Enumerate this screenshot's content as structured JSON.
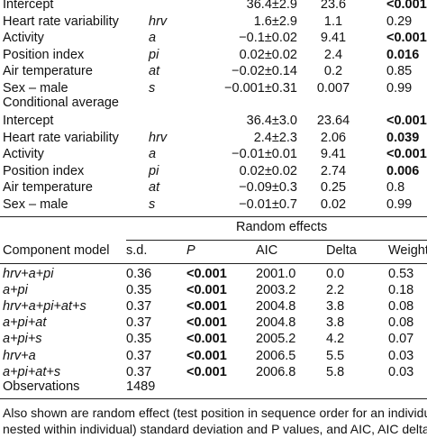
{
  "fixed_rows_a": [
    {
      "label": "Intercept",
      "symbol": "",
      "estimate": "36.4±2.9",
      "stat": "23.6",
      "p": "<0.001",
      "p_bold": true
    },
    {
      "label": "Heart rate variability",
      "symbol": "hrv",
      "estimate": "1.6±2.9",
      "stat": "1.1",
      "p": "0.29",
      "p_bold": false
    },
    {
      "label": "Activity",
      "symbol": "a",
      "estimate": "−0.1±0.02",
      "stat": "9.41",
      "p": "<0.001",
      "p_bold": true
    },
    {
      "label": "Position index",
      "symbol": "pi",
      "estimate": "0.02±0.02",
      "stat": "2.4",
      "p": "0.016",
      "p_bold": true
    },
    {
      "label": "Air temperature",
      "symbol": "at",
      "estimate": "−0.02±0.14",
      "stat": "0.2",
      "p": "0.85",
      "p_bold": false
    },
    {
      "label": "Sex – male",
      "symbol": "s",
      "estimate": "−0.001±0.31",
      "stat": "0.007",
      "p": "0.99",
      "p_bold": false
    }
  ],
  "conditional_title": "Conditional average",
  "fixed_rows_b": [
    {
      "label": "Intercept",
      "symbol": "",
      "estimate": "36.4±3.0",
      "stat": "23.64",
      "p": "<0.001",
      "p_bold": true
    },
    {
      "label": "Heart rate variability",
      "symbol": "hrv",
      "estimate": "2.4±2.3",
      "stat": "2.06",
      "p": "0.039",
      "p_bold": true
    },
    {
      "label": "Activity",
      "symbol": "a",
      "estimate": "−0.01±0.01",
      "stat": "9.41",
      "p": "<0.001",
      "p_bold": true
    },
    {
      "label": "Position index",
      "symbol": "pi",
      "estimate": "0.02±0.02",
      "stat": "2.74",
      "p": "0.006",
      "p_bold": true
    },
    {
      "label": "Air temperature",
      "symbol": "at",
      "estimate": "−0.09±0.3",
      "stat": "0.25",
      "p": "0.8",
      "p_bold": false
    },
    {
      "label": "Sex – male",
      "symbol": "s",
      "estimate": "−0.01±0.7",
      "stat": "0.02",
      "p": "0.99",
      "p_bold": false
    }
  ],
  "random_effects_title": "Random effects",
  "random_headers": {
    "component": "Component model",
    "sd": "s.d.",
    "p": "P",
    "aic": "AIC",
    "delta": "Delta",
    "weight": "Weight"
  },
  "random_rows": [
    {
      "model": "hrv+a+pi",
      "sd": "0.36",
      "p": "<0.001",
      "aic": "2001.0",
      "delta": "0.0",
      "weight": "0.53"
    },
    {
      "model": "a+pi",
      "sd": "0.35",
      "p": "<0.001",
      "aic": "2003.2",
      "delta": "2.2",
      "weight": "0.18"
    },
    {
      "model": "hrv+a+pi+at+s",
      "sd": "0.37",
      "p": "<0.001",
      "aic": "2004.8",
      "delta": "3.8",
      "weight": "0.08"
    },
    {
      "model": "a+pi+at",
      "sd": "0.37",
      "p": "<0.001",
      "aic": "2004.8",
      "delta": "3.8",
      "weight": "0.08"
    },
    {
      "model": "a+pi+s",
      "sd": "0.35",
      "p": "<0.001",
      "aic": "2005.2",
      "delta": "4.2",
      "weight": "0.07"
    },
    {
      "model": "hrv+a",
      "sd": "0.37",
      "p": "<0.001",
      "aic": "2006.5",
      "delta": "5.5",
      "weight": "0.03"
    },
    {
      "model": "a+pi+at+s",
      "sd": "0.37",
      "p": "<0.001",
      "aic": "2006.8",
      "delta": "5.8",
      "weight": "0.03"
    }
  ],
  "observations_label": "Observations",
  "observations_value": "1489",
  "footnote_line1": "Also shown are random effect (test position in sequence order for an individual,",
  "footnote_line2": "nested within individual) standard deviation and P values, and AIC, AIC delta"
}
